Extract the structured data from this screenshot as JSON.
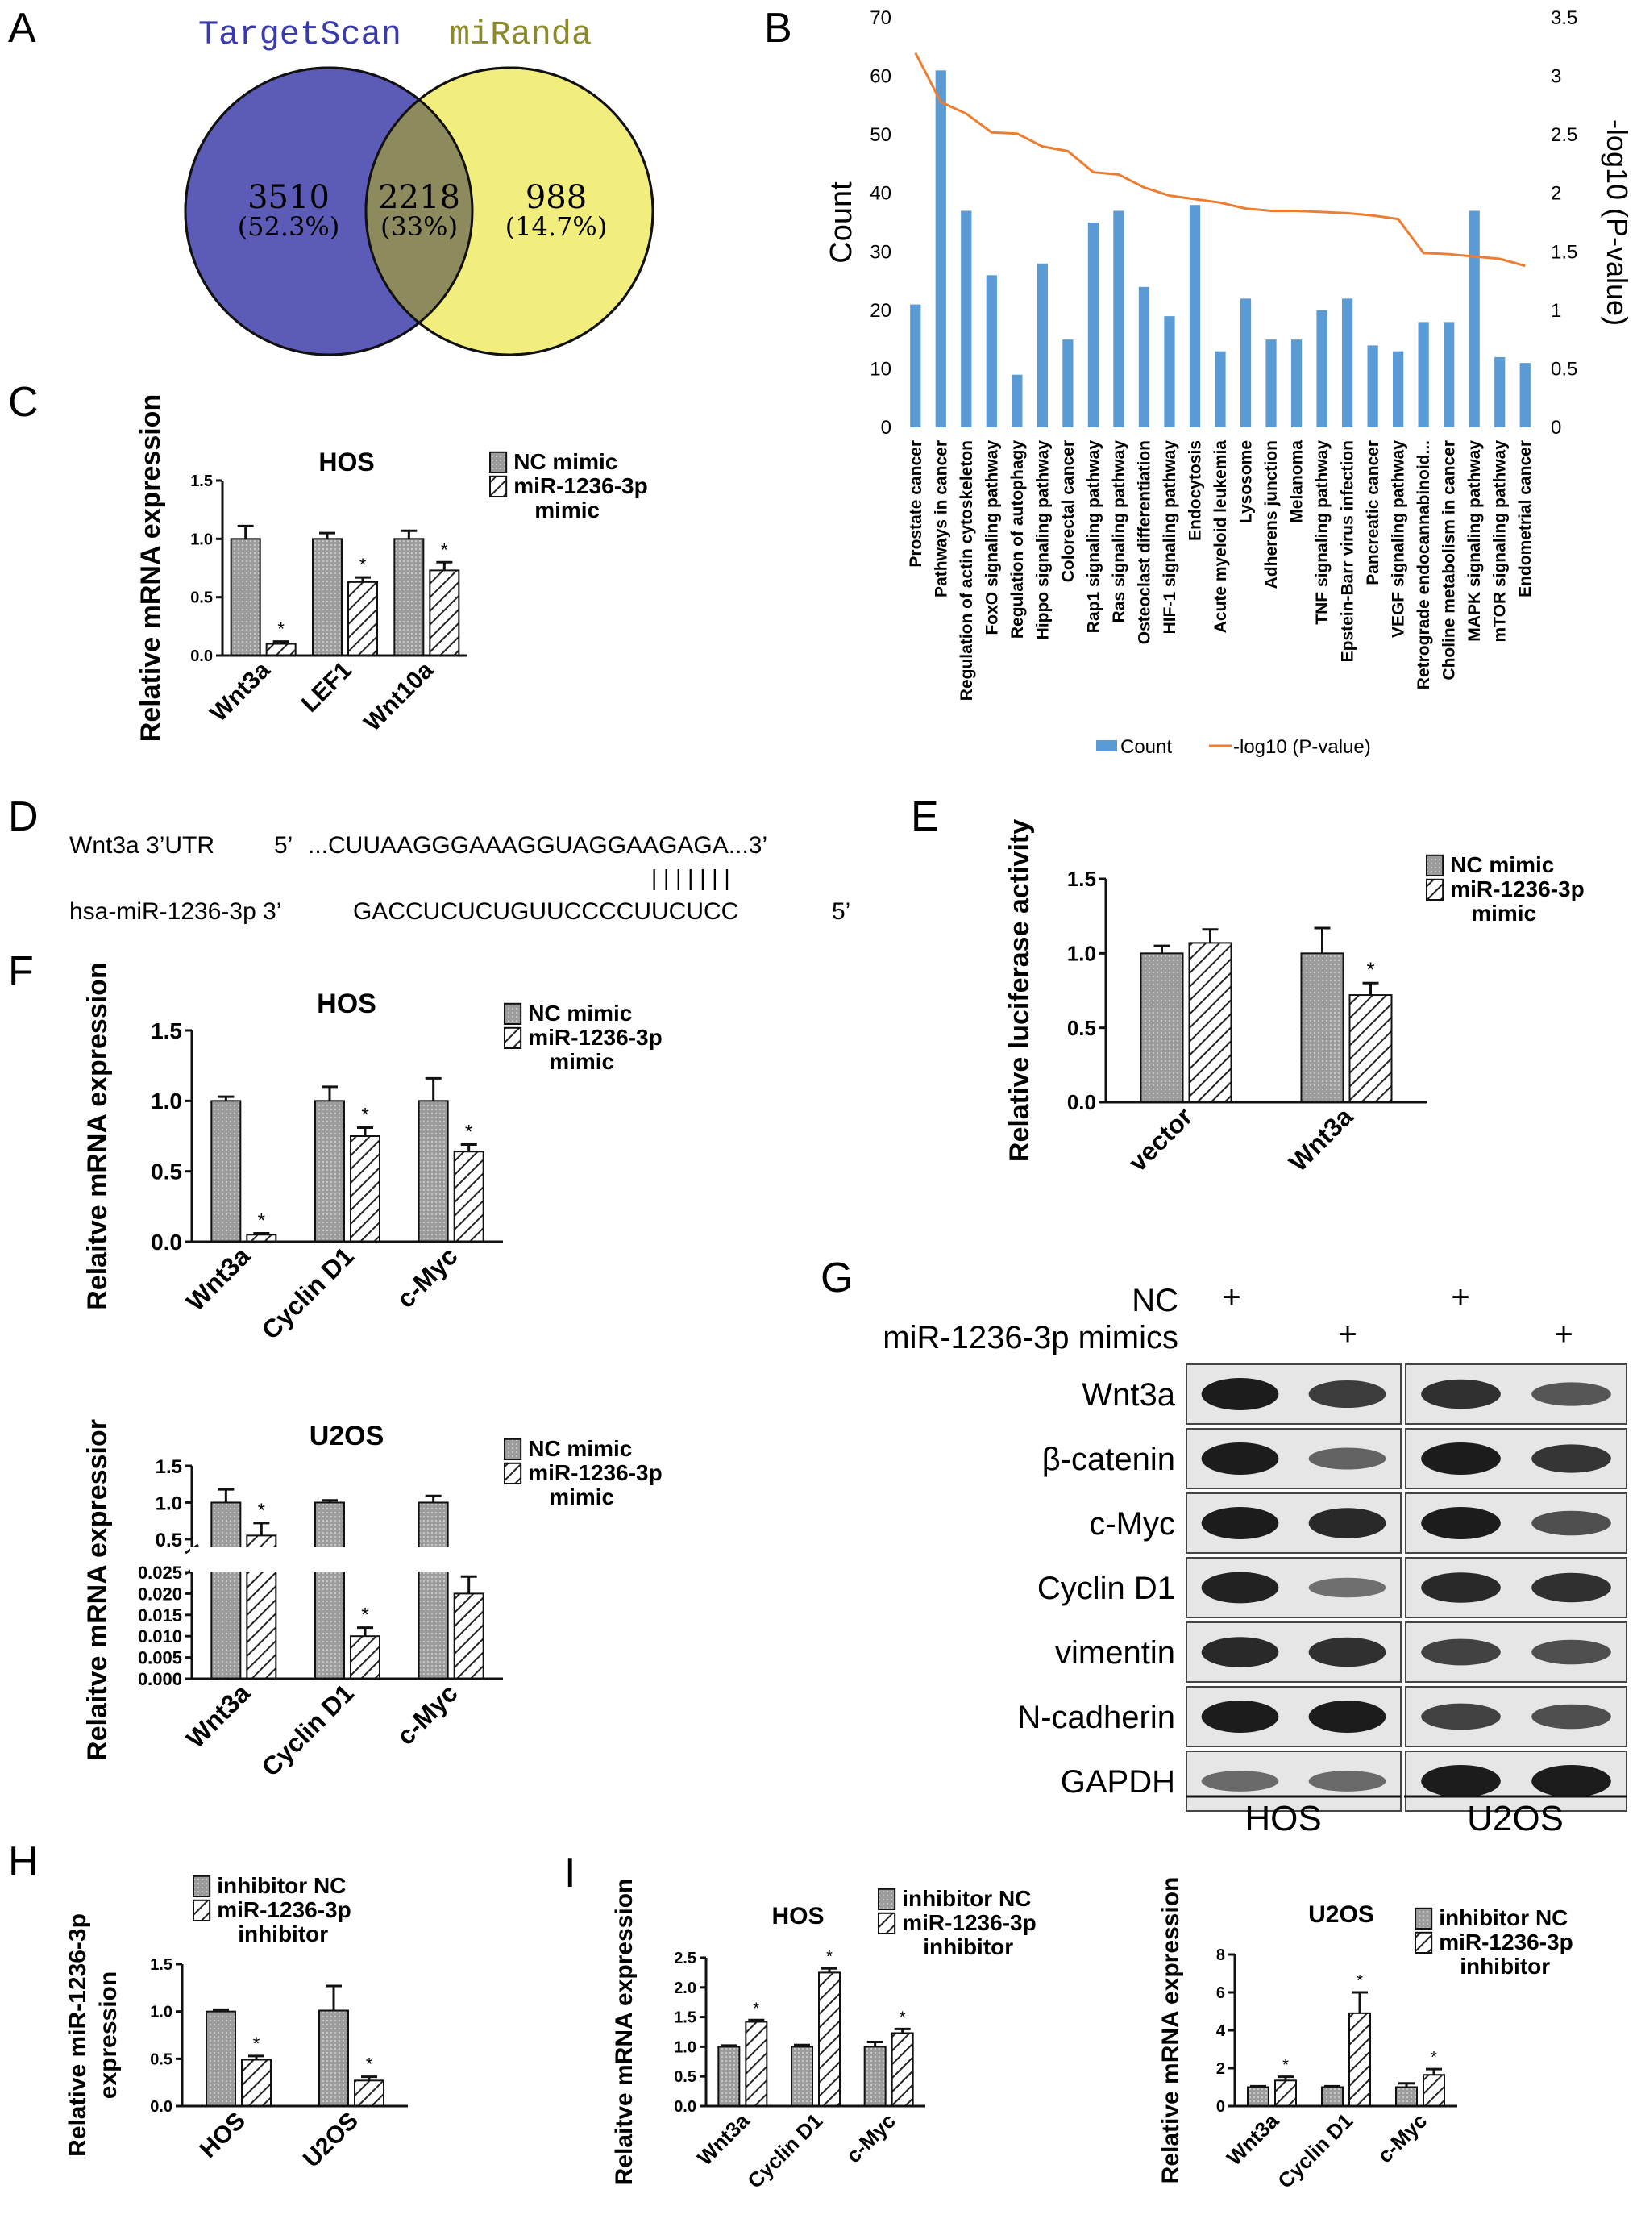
{
  "panel_labels": {
    "A": "A",
    "B": "B",
    "C": "C",
    "D": "D",
    "E": "E",
    "F": "F",
    "G": "G",
    "H": "H",
    "I": "I"
  },
  "venn": {
    "left_title": "TargetScan",
    "right_title": "miRanda",
    "left_count": "3510",
    "left_pct": "(52.3%)",
    "mid_count": "2218",
    "mid_pct": "(33%)",
    "right_count": "988",
    "right_pct": "(14.7%)",
    "colors": {
      "left": "#5c5cb8",
      "right": "#f2ee7e",
      "overlap": "#8d8a5e",
      "left_title": "#3a3ab0",
      "right_title": "#8a8a2a"
    }
  },
  "legend_labels": {
    "nc_mimic": "NC mimic",
    "mir_mimic_1": "miR-1236-3p",
    "mir_mimic_2": "mimic",
    "inh_nc": "inhibitor NC",
    "mir_inh_1": "miR-1236-3p",
    "mir_inh_2": "inhibitor"
  },
  "seq": {
    "row1_label": "Wnt3a 3’UTR",
    "row1_5": "5’",
    "row1_seq": "...CUUAAGGGAAAGGUAGGAAGAGA...3’",
    "row2_label": "hsa-miR-1236-3p 3’",
    "row2_seq": "GACCUCUCUGUUCCCCUUCUCC",
    "row2_5": "5’",
    "pairs": "| | | | | | |"
  },
  "western": {
    "nc_label": "NC",
    "mimics_label": "miR-1236-3p mimics",
    "plus": "+",
    "rows": [
      "Wnt3a",
      "β-catenin",
      "c-Myc",
      "Cyclin D1",
      "vimentin",
      "N-cadherin",
      "GAPDH"
    ],
    "cells": [
      "HOS",
      "U2OS"
    ]
  },
  "star": "*",
  "chart_data": [
    {
      "panel": "B",
      "type": "bar",
      "categories": [
        "Prostate cancer",
        "Pathways in cancer",
        "Regulation of actin cytoskeleton",
        "FoxO signaling pathway",
        "Regulation of autophagy",
        "Hippo signaling pathway",
        "Colorectal cancer",
        "Rap1 signaling pathway",
        "Ras signaling pathway",
        "Osteoclast differentiation",
        "HIF-1 signaling pathway",
        "Endocytosis",
        "Acute myeloid leukemia",
        "Lysosome",
        "Adherens junction",
        "Melanoma",
        "TNF signaling pathway",
        "Epstein-Barr virus infection",
        "Pancreatic cancer",
        "VEGF signaling pathway",
        "Retrograde endocannabinoid...",
        "Choline metabolism in cancer",
        "MAPK signaling pathway",
        "mTOR signaling pathway",
        "Endometrial cancer"
      ],
      "series": [
        {
          "name": "Count",
          "type": "bar",
          "color": "#5b9bd5",
          "values": [
            21,
            61,
            37,
            26,
            9,
            28,
            15,
            35,
            37,
            24,
            19,
            38,
            13,
            22,
            15,
            15,
            20,
            22,
            14,
            13,
            18,
            18,
            37,
            12,
            11
          ]
        },
        {
          "name": "-log10 (P-value)",
          "type": "line",
          "axis": "right",
          "color": "#ed7d31",
          "values": [
            3.2,
            2.78,
            2.68,
            2.52,
            2.51,
            2.4,
            2.36,
            2.18,
            2.16,
            2.05,
            1.98,
            1.95,
            1.92,
            1.87,
            1.85,
            1.85,
            1.84,
            1.83,
            1.81,
            1.78,
            1.49,
            1.48,
            1.46,
            1.44,
            1.38
          ]
        }
      ],
      "ylabel": "Count",
      "ylabel_right": "-log10 (P-value)",
      "ylim": [
        0,
        70
      ],
      "ylim_right": [
        0,
        3.5
      ],
      "yticks": [
        "0",
        "10",
        "20",
        "30",
        "40",
        "50",
        "60",
        "70"
      ],
      "yticks_right": [
        "0",
        "0.5",
        "1",
        "1.5",
        "2",
        "2.5",
        "3",
        "3.5"
      ],
      "legend_position": "bottom"
    },
    {
      "panel": "C",
      "type": "bar",
      "title": "HOS",
      "ylabel": "Relative mRNA expression",
      "categories": [
        "Wnt3a",
        "LEF1",
        "Wnt10a"
      ],
      "series": [
        {
          "name": "NC mimic",
          "values": [
            1.0,
            1.0,
            1.0
          ],
          "errors": [
            0.11,
            0.05,
            0.07
          ]
        },
        {
          "name": "miR-1236-3p mimic",
          "values": [
            0.1,
            0.63,
            0.73
          ],
          "errors": [
            0.02,
            0.04,
            0.07
          ]
        }
      ],
      "significant": [
        true,
        true,
        true
      ],
      "ylim": [
        0,
        1.5
      ],
      "yticks": [
        "0.0",
        "0.5",
        "1.0",
        "1.5"
      ]
    },
    {
      "panel": "E",
      "type": "bar",
      "ylabel": "Relative luciferase activity",
      "categories": [
        "vector",
        "Wnt3a"
      ],
      "series": [
        {
          "name": "NC mimic",
          "values": [
            1.0,
            1.0
          ],
          "errors": [
            0.05,
            0.17
          ]
        },
        {
          "name": "miR-1236-3p mimic",
          "values": [
            1.07,
            0.72
          ],
          "errors": [
            0.09,
            0.08
          ]
        }
      ],
      "significant": [
        false,
        true
      ],
      "ylim": [
        0,
        1.5
      ],
      "yticks": [
        "0.0",
        "0.5",
        "1.0",
        "1.5"
      ]
    },
    {
      "panel": "F-HOS",
      "type": "bar",
      "title": "HOS",
      "ylabel": "Relaitve mRNA expression",
      "categories": [
        "Wnt3a",
        "Cyclin D1",
        "c-Myc"
      ],
      "series": [
        {
          "name": "NC mimic",
          "values": [
            1.0,
            1.0,
            1.0
          ],
          "errors": [
            0.03,
            0.1,
            0.16
          ]
        },
        {
          "name": "miR-1236-3p mimic",
          "values": [
            0.05,
            0.75,
            0.64
          ],
          "errors": [
            0.01,
            0.06,
            0.05
          ]
        }
      ],
      "significant": [
        true,
        true,
        true
      ],
      "ylim": [
        0,
        1.5
      ],
      "yticks": [
        "0.0",
        "0.5",
        "1.0",
        "1.5"
      ]
    },
    {
      "panel": "F-U2OS",
      "type": "bar",
      "title": "U2OS",
      "ylabel": "Relaitve mRNA expressior",
      "categories": [
        "Wnt3a",
        "Cyclin D1",
        "c-Myc"
      ],
      "series": [
        {
          "name": "NC mimic",
          "values": [
            1.0,
            1.0,
            1.0
          ],
          "errors": [
            0.18,
            0.03,
            0.09
          ]
        },
        {
          "name": "miR-1236-3p mimic",
          "values": [
            0.55,
            0.01,
            0.02
          ],
          "errors": [
            0.17,
            0.002,
            0.004
          ]
        }
      ],
      "significant": [
        true,
        true,
        true
      ],
      "broken_axis": true,
      "yticks_lower": [
        "0.000",
        "0.005",
        "0.010",
        "0.015",
        "0.020",
        "0.025"
      ],
      "yticks_upper": [
        "0.5",
        "1.0",
        "1.5"
      ]
    },
    {
      "panel": "H",
      "type": "bar",
      "ylabel": "Relative miR-1236-3p expression",
      "categories": [
        "HOS",
        "U2OS"
      ],
      "series": [
        {
          "name": "inhibitor NC",
          "values": [
            1.0,
            1.01
          ],
          "errors": [
            0.02,
            0.26
          ]
        },
        {
          "name": "miR-1236-3p inhibitor",
          "values": [
            0.49,
            0.27
          ],
          "errors": [
            0.04,
            0.04
          ]
        }
      ],
      "significant": [
        true,
        true
      ],
      "ylim": [
        0,
        1.5
      ],
      "yticks": [
        "0.0",
        "0.5",
        "1.0",
        "1.5"
      ]
    },
    {
      "panel": "I-HOS",
      "type": "bar",
      "title": "HOS",
      "ylabel": "Relaitve mRNA expression",
      "categories": [
        "Wnt3a",
        "Cyclin D1",
        "c-Myc"
      ],
      "series": [
        {
          "name": "inhibitor NC",
          "values": [
            1.0,
            1.0,
            1.0
          ],
          "errors": [
            0.02,
            0.03,
            0.08
          ]
        },
        {
          "name": "miR-1236-3p inhibitor",
          "values": [
            1.42,
            2.25,
            1.23
          ],
          "errors": [
            0.03,
            0.07,
            0.07
          ]
        }
      ],
      "significant": [
        true,
        true,
        true
      ],
      "ylim": [
        0,
        2.5
      ],
      "yticks": [
        "0.0",
        "0.5",
        "1.0",
        "1.5",
        "2.0",
        "2.5"
      ]
    },
    {
      "panel": "I-U2OS",
      "type": "bar",
      "title": "U2OS",
      "ylabel": "Relative mRNA  expression",
      "categories": [
        "Wnt3a",
        "Cyclin D1",
        "c-Myc"
      ],
      "series": [
        {
          "name": "inhibitor NC",
          "values": [
            1.0,
            1.0,
            1.0
          ],
          "errors": [
            0.05,
            0.05,
            0.2
          ]
        },
        {
          "name": "miR-1236-3p inhibitor",
          "values": [
            1.35,
            4.9,
            1.65
          ],
          "errors": [
            0.2,
            1.1,
            0.3
          ]
        }
      ],
      "significant": [
        true,
        true,
        true
      ],
      "ylim": [
        0,
        8
      ],
      "yticks": [
        "0",
        "2",
        "4",
        "6",
        "8"
      ]
    }
  ]
}
